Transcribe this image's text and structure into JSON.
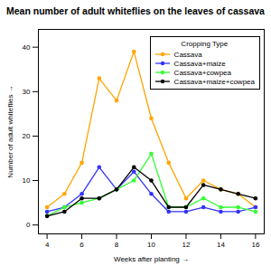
{
  "chart_data": {
    "type": "line",
    "title": "Mean number of adult whiteflies on the leaves of cassava",
    "x_label": "Weeks after planting",
    "y_label": "Number of adult whiteflies",
    "legend_title": "Cropping Type",
    "legend": "topright",
    "grid": false,
    "marker": "circle",
    "x": [
      4,
      5,
      6,
      7,
      8,
      9,
      10,
      11,
      12,
      13,
      14,
      15,
      16
    ],
    "series": [
      {
        "name": "Cassava",
        "color": "#FFA500",
        "values": [
          4,
          7,
          14,
          33,
          28,
          39,
          24,
          14,
          6,
          10,
          8,
          7,
          4
        ]
      },
      {
        "name": "Cassava+maize",
        "color": "#3333FF",
        "values": [
          3,
          4,
          7,
          13,
          8,
          12,
          7,
          3,
          3,
          4,
          3,
          3,
          4
        ]
      },
      {
        "name": "Cassava+cowpea",
        "color": "#33FF33",
        "values": [
          2,
          4,
          5,
          6,
          8,
          10,
          16,
          4,
          4,
          6,
          4,
          4,
          3
        ]
      },
      {
        "name": "Cassava+maize+cowpea",
        "color": "#000000",
        "values": [
          2,
          3,
          6,
          6,
          8,
          13,
          10,
          4,
          4,
          9,
          8,
          7,
          6
        ]
      }
    ],
    "xlim": [
      3.5,
      16.5
    ],
    "xticks": [
      4,
      6,
      8,
      10,
      12,
      14,
      16
    ],
    "ylim": [
      -2,
      44
    ],
    "yticks": [
      0,
      10,
      20,
      30,
      40
    ]
  }
}
